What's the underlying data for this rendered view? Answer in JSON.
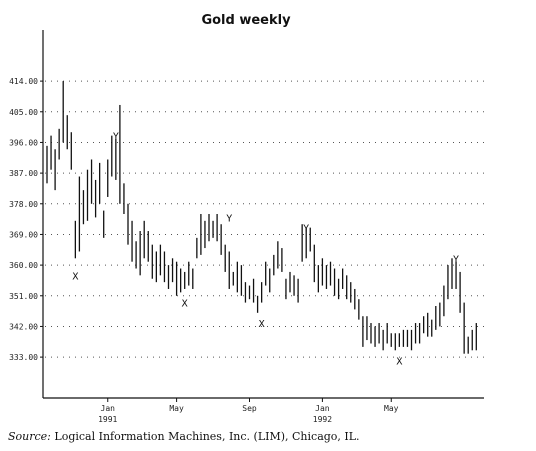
{
  "source": {
    "label": "Source:",
    "text": "Logical Information Machines, Inc. (LIM), Chicago, IL."
  },
  "chart_data": {
    "type": "bar",
    "style": "weekly high-low bars",
    "title": "Gold weekly",
    "xlabel": "",
    "ylabel": "",
    "ylim": [
      321,
      429
    ],
    "grid": true,
    "yticks": [
      333,
      342,
      351,
      360,
      369,
      378,
      387,
      396,
      405,
      414
    ],
    "ytick_labels": [
      "333.00",
      "342.00",
      "351.00",
      "360.00",
      "369.00",
      "378.00",
      "387.00",
      "396.00",
      "405.00",
      "414.00"
    ],
    "xticks": [
      {
        "label": "Jan",
        "year": "1991",
        "week": 15
      },
      {
        "label": "May",
        "year": "",
        "week": 32
      },
      {
        "label": "Sep",
        "year": "",
        "week": 50
      },
      {
        "label": "Jan",
        "year": "1992",
        "week": 68
      },
      {
        "label": "May",
        "year": "",
        "week": 85
      }
    ],
    "markers": [
      {
        "label": "X",
        "week": 7,
        "value": 357
      },
      {
        "label": "Y",
        "week": 17,
        "value": 398
      },
      {
        "label": "X",
        "week": 34,
        "value": 349
      },
      {
        "label": "Y",
        "week": 45,
        "value": 374
      },
      {
        "label": "X",
        "week": 53,
        "value": 343
      },
      {
        "label": "Y",
        "week": 64,
        "value": 371
      },
      {
        "label": "X",
        "week": 87,
        "value": 332
      },
      {
        "label": "Y",
        "week": 101,
        "value": 362
      }
    ],
    "weekly_range": [
      [
        395,
        384
      ],
      [
        398,
        388
      ],
      [
        394,
        382
      ],
      [
        400,
        391
      ],
      [
        414,
        396
      ],
      [
        404,
        394
      ],
      [
        399,
        388
      ],
      [
        373,
        362
      ],
      [
        386,
        364
      ],
      [
        382,
        372
      ],
      [
        388,
        373
      ],
      [
        391,
        378
      ],
      [
        385,
        374
      ],
      [
        390,
        378
      ],
      [
        376,
        368
      ],
      [
        391,
        380
      ],
      [
        398,
        386
      ],
      [
        397,
        385
      ],
      [
        407,
        378
      ],
      [
        384,
        375
      ],
      [
        378,
        366
      ],
      [
        373,
        361
      ],
      [
        367,
        359
      ],
      [
        370,
        357
      ],
      [
        373,
        362
      ],
      [
        370,
        361
      ],
      [
        366,
        356
      ],
      [
        364,
        355
      ],
      [
        366,
        357
      ],
      [
        364,
        355
      ],
      [
        360,
        353
      ],
      [
        362,
        355
      ],
      [
        361,
        351
      ],
      [
        359,
        352
      ],
      [
        358,
        353
      ],
      [
        361,
        354
      ],
      [
        359,
        353
      ],
      [
        368,
        362
      ],
      [
        375,
        363
      ],
      [
        373,
        365
      ],
      [
        375,
        367
      ],
      [
        373,
        368
      ],
      [
        375,
        367
      ],
      [
        372,
        363
      ],
      [
        366,
        358
      ],
      [
        364,
        353
      ],
      [
        358,
        354
      ],
      [
        361,
        352
      ],
      [
        360,
        351
      ],
      [
        355,
        349
      ],
      [
        354,
        350
      ],
      [
        356,
        349
      ],
      [
        351,
        346
      ],
      [
        355,
        349
      ],
      [
        361,
        354
      ],
      [
        359,
        352
      ],
      [
        363,
        357
      ],
      [
        367,
        359
      ],
      [
        365,
        358
      ],
      [
        356,
        350
      ],
      [
        358,
        352
      ],
      [
        357,
        351
      ],
      [
        356,
        349
      ],
      [
        372,
        361
      ],
      [
        371,
        362
      ],
      [
        371,
        364
      ],
      [
        366,
        355
      ],
      [
        360,
        352
      ],
      [
        362,
        354
      ],
      [
        360,
        353
      ],
      [
        361,
        354
      ],
      [
        359,
        351
      ],
      [
        356,
        350
      ],
      [
        359,
        353
      ],
      [
        357,
        350
      ],
      [
        355,
        349
      ],
      [
        353,
        347
      ],
      [
        350,
        344
      ],
      [
        345,
        336
      ],
      [
        345,
        338
      ],
      [
        343,
        337
      ],
      [
        342,
        336
      ],
      [
        343,
        337
      ],
      [
        341,
        335
      ],
      [
        343,
        337
      ],
      [
        340,
        336
      ],
      [
        340,
        335
      ],
      [
        340,
        336
      ],
      [
        341,
        336
      ],
      [
        341,
        336
      ],
      [
        341,
        335
      ],
      [
        343,
        337
      ],
      [
        343,
        337
      ],
      [
        345,
        340
      ],
      [
        346,
        339
      ],
      [
        344,
        339
      ],
      [
        348,
        341
      ],
      [
        349,
        342
      ],
      [
        354,
        345
      ],
      [
        360,
        350
      ],
      [
        362,
        353
      ],
      [
        361,
        353
      ],
      [
        358,
        346
      ],
      [
        349,
        334
      ],
      [
        339,
        334
      ],
      [
        341,
        335
      ],
      [
        343,
        335
      ]
    ]
  }
}
